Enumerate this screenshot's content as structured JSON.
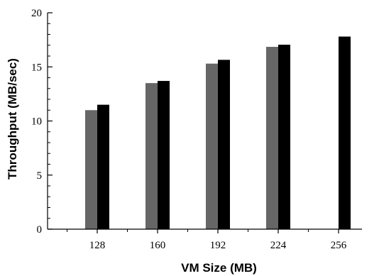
{
  "chart_data": {
    "type": "bar",
    "title": "",
    "xlabel": "VM Size (MB)",
    "ylabel": "Throughput (MB/sec)",
    "categories": [
      "128",
      "160",
      "192",
      "224",
      "256"
    ],
    "series": [
      {
        "values": [
          11.0,
          13.5,
          15.3,
          16.85,
          null
        ]
      },
      {
        "values": [
          11.5,
          13.7,
          15.65,
          17.05,
          17.8
        ]
      }
    ],
    "ylim": [
      0,
      20
    ],
    "yticks": [
      0,
      5,
      10,
      15,
      20
    ],
    "grid": false,
    "legend": "none",
    "colors": {
      "series0": "#666666",
      "series1": "#000000",
      "axis": "#000000"
    }
  }
}
